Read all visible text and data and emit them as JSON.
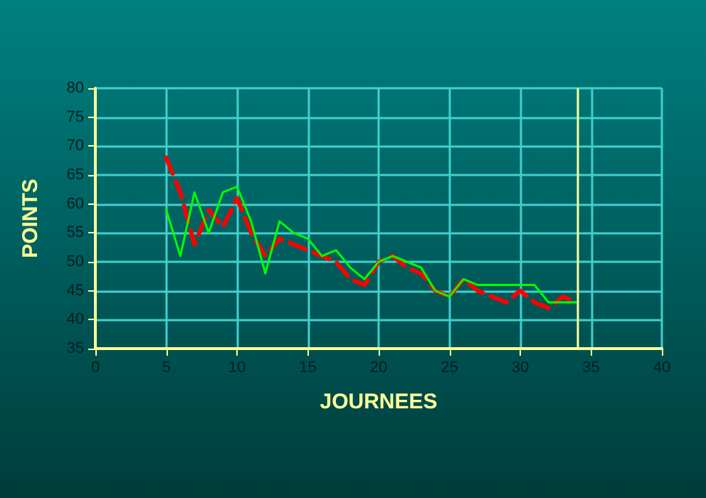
{
  "chart_data": {
    "type": "line",
    "xlabel": "JOURNEES",
    "ylabel": "POINTS",
    "xlim": [
      0,
      40
    ],
    "xticks": [
      0,
      5,
      10,
      15,
      20,
      25,
      30,
      35,
      40
    ],
    "ylim": [
      35,
      80
    ],
    "yticks": [
      35,
      40,
      45,
      50,
      55,
      60,
      65,
      70,
      75,
      80
    ],
    "grid": true,
    "marker": "none",
    "series": [
      {
        "color": "#ff0000",
        "line_style": "dashed",
        "x": [
          5,
          6,
          7,
          8,
          9,
          10,
          11,
          12,
          13,
          14,
          15,
          16,
          17,
          18,
          19,
          20,
          21,
          22,
          23,
          24,
          25,
          26,
          27,
          28,
          29,
          30,
          31,
          32,
          33,
          34
        ],
        "values": [
          68,
          62,
          53,
          59,
          56,
          61,
          55,
          51,
          54,
          53,
          52,
          51,
          50,
          47,
          46,
          50,
          51,
          49,
          48,
          45,
          44,
          47,
          45,
          44,
          43,
          45,
          43,
          42,
          44,
          43
        ]
      },
      {
        "color": "#00ff00",
        "line_style": "solid",
        "x": [
          5,
          6,
          7,
          8,
          9,
          10,
          11,
          12,
          13,
          14,
          15,
          16,
          17,
          18,
          19,
          20,
          21,
          22,
          23,
          24,
          25,
          26,
          27,
          28,
          29,
          30,
          31,
          32,
          33,
          34
        ],
        "values": [
          59,
          51,
          62,
          55,
          62,
          63,
          57,
          48,
          57,
          55,
          54,
          51,
          52,
          49,
          47,
          50,
          51,
          50,
          49,
          45,
          44,
          47,
          46,
          46,
          46,
          46,
          46,
          43,
          43,
          43
        ]
      }
    ],
    "ref_lines": [
      {
        "axis": "x",
        "value": 34,
        "color": "#ffff99",
        "line_style": "solid"
      }
    ]
  }
}
